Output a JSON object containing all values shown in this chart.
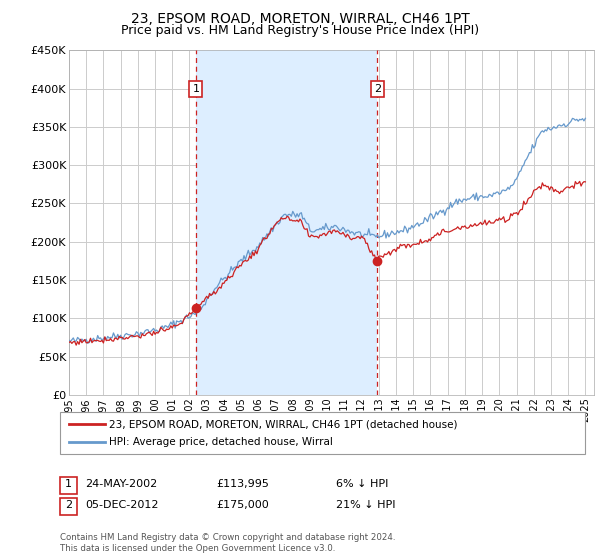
{
  "title": "23, EPSOM ROAD, MORETON, WIRRAL, CH46 1PT",
  "subtitle": "Price paid vs. HM Land Registry's House Price Index (HPI)",
  "ylim": [
    0,
    450000
  ],
  "yticks": [
    0,
    50000,
    100000,
    150000,
    200000,
    250000,
    300000,
    350000,
    400000,
    450000
  ],
  "ytick_labels": [
    "£0",
    "£50K",
    "£100K",
    "£150K",
    "£200K",
    "£250K",
    "£300K",
    "£350K",
    "£400K",
    "£450K"
  ],
  "background_color": "#ffffff",
  "plot_bg_color": "#ffffff",
  "grid_color": "#cccccc",
  "span_color": "#ddeeff",
  "hpi_line_color": "#6699cc",
  "price_line_color": "#cc2222",
  "transaction1": {
    "date": "24-MAY-2002",
    "price": 113995,
    "label": "1",
    "pct": "6% ↓ HPI"
  },
  "transaction2": {
    "date": "05-DEC-2012",
    "price": 175000,
    "label": "2",
    "pct": "21% ↓ HPI"
  },
  "legend_label1": "23, EPSOM ROAD, MORETON, WIRRAL, CH46 1PT (detached house)",
  "legend_label2": "HPI: Average price, detached house, Wirral",
  "footer": "Contains HM Land Registry data © Crown copyright and database right 2024.\nThis data is licensed under the Open Government Licence v3.0.",
  "title_fontsize": 10,
  "subtitle_fontsize": 9,
  "t1_year": 2002.37,
  "t2_year": 2012.92,
  "t1_price": 113995,
  "t2_price": 175000
}
